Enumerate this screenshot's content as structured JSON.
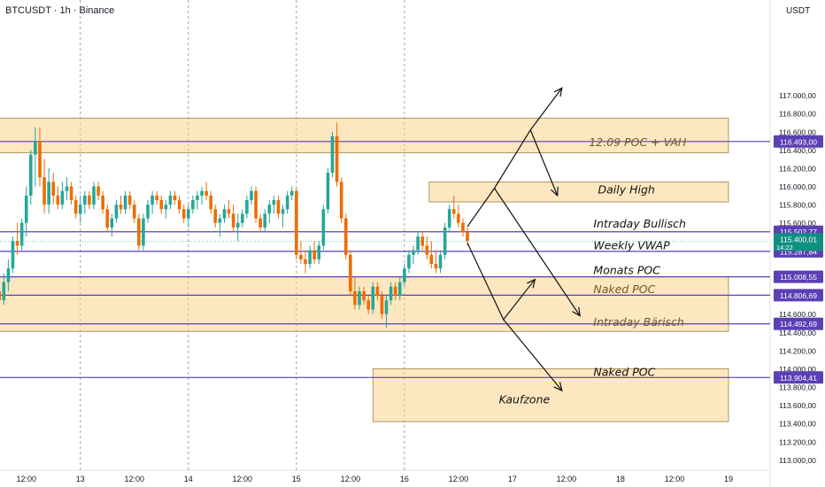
{
  "header": {
    "symbol": "BTCUSDT · 1h · Binance",
    "currency": "USDT"
  },
  "chart_data": {
    "type": "candlestick",
    "symbol": "BTCUSDT",
    "interval": "1h",
    "exchange": "Binance",
    "ylim": [
      112900,
      117300
    ],
    "y_ticks": [
      "117.000,00",
      "116.800,00",
      "116.600,00",
      "116.400,00",
      "116.200,00",
      "116.000,00",
      "115.800,00",
      "115.600,00",
      "115.400,00",
      "114.600,00",
      "114.400,00",
      "114.200,00",
      "114.000,00",
      "113.800,00",
      "113.600,00",
      "113.400,00",
      "113.200,00",
      "113.000,00"
    ],
    "x_tick_labels": [
      "12:00",
      "13",
      "12:00",
      "14",
      "12:00",
      "15",
      "12:00",
      "16",
      "12:00",
      "17",
      "12:00",
      "18",
      "12:00",
      "19"
    ],
    "x_tick_hours": [
      12,
      24,
      36,
      48,
      60,
      72,
      84,
      96,
      108,
      120,
      132,
      144,
      156,
      168
    ],
    "day_separators": [
      24,
      48,
      72,
      96
    ],
    "last_price": {
      "value": "115.400,01",
      "countdown": "14:22"
    },
    "horizontal_levels": [
      {
        "price": 116493,
        "label": "116.493,00"
      },
      {
        "price": 115502.77,
        "label": "115.502,77"
      },
      {
        "price": 115287.84,
        "label": "115.287,84"
      },
      {
        "price": 115008.55,
        "label": "115.008,55"
      },
      {
        "price": 114806.69,
        "label": "114.806,69"
      },
      {
        "price": 114492.69,
        "label": "114.492,69"
      },
      {
        "price": 113904.41,
        "label": "113.904,41"
      }
    ],
    "zones": [
      {
        "x0": 5,
        "x1": 168,
        "top": 116750,
        "bottom": 116370
      },
      {
        "x0": 101.5,
        "x1": 168,
        "top": 116050,
        "bottom": 115830
      },
      {
        "x0": 2,
        "x1": 168,
        "top": 115010,
        "bottom": 114410
      },
      {
        "x0": 89,
        "x1": 168,
        "top": 114000,
        "bottom": 113420
      }
    ],
    "annotations": [
      {
        "text": "12.09 POC + VAH",
        "x": 137,
        "y": 116480,
        "style": "dark"
      },
      {
        "text": "Daily High",
        "x": 139,
        "y": 115960,
        "style": "black"
      },
      {
        "text": "Intraday Bullisch",
        "x": 138,
        "y": 115590,
        "style": "black"
      },
      {
        "text": "Weekly VWAP",
        "x": 138,
        "y": 115350,
        "style": "black"
      },
      {
        "text": "Monats POC",
        "x": 138,
        "y": 115080,
        "style": "black"
      },
      {
        "text": "Naked POC",
        "x": 138,
        "y": 114870,
        "style": "dark"
      },
      {
        "text": "Intraday Bärisch",
        "x": 138,
        "y": 114510,
        "style": "dark"
      },
      {
        "text": "Naked POC",
        "x": 138,
        "y": 113960,
        "style": "black"
      },
      {
        "text": "Kaufzone",
        "x": 117,
        "y": 113660,
        "style": "black"
      }
    ],
    "arrows": [
      {
        "points": [
          [
            110,
            115560
          ],
          [
            116,
            115980
          ],
          [
            124,
            116620
          ],
          [
            131,
            117080
          ]
        ],
        "head": true
      },
      {
        "points": [
          [
            124,
            116620
          ],
          [
            130,
            115900
          ]
        ],
        "head": true
      },
      {
        "points": [
          [
            116,
            115980
          ],
          [
            135,
            114580
          ]
        ],
        "head": true
      },
      {
        "points": [
          [
            110,
            115380
          ],
          [
            118,
            114540
          ],
          [
            125,
            114980
          ]
        ],
        "head": true
      },
      {
        "points": [
          [
            118,
            114540
          ],
          [
            131,
            113760
          ]
        ],
        "head": true
      }
    ],
    "candles": [
      [
        115650,
        115700,
        115150,
        115300
      ],
      [
        115300,
        115550,
        115050,
        115450
      ],
      [
        115450,
        115480,
        115000,
        115100
      ],
      [
        115100,
        115150,
        114750,
        114850
      ],
      [
        114850,
        114950,
        114700,
        114750
      ],
      [
        114750,
        115050,
        114700,
        114950
      ],
      [
        114950,
        115200,
        114850,
        115100
      ],
      [
        115100,
        115450,
        115050,
        115400
      ],
      [
        115400,
        115600,
        115250,
        115350
      ],
      [
        115350,
        115650,
        115300,
        115600
      ],
      [
        115600,
        116000,
        115450,
        115900
      ],
      [
        115900,
        116400,
        115800,
        116350
      ],
      [
        116350,
        116650,
        116000,
        116500
      ],
      [
        116500,
        116650,
        116000,
        116100
      ],
      [
        116100,
        116300,
        115700,
        115800
      ],
      [
        115800,
        116200,
        115700,
        116050
      ],
      [
        116050,
        116150,
        115800,
        115900
      ],
      [
        115900,
        116000,
        115750,
        115800
      ],
      [
        115800,
        116050,
        115750,
        115950
      ],
      [
        115950,
        116100,
        115850,
        116000
      ],
      [
        116000,
        116050,
        115800,
        115850
      ],
      [
        115850,
        115900,
        115650,
        115700
      ],
      [
        115700,
        115900,
        115600,
        115800
      ],
      [
        115800,
        115950,
        115700,
        115900
      ],
      [
        115900,
        115950,
        115750,
        115800
      ],
      [
        115800,
        116050,
        115750,
        116000
      ],
      [
        116000,
        116050,
        115850,
        115900
      ],
      [
        115900,
        115950,
        115700,
        115750
      ],
      [
        115750,
        115800,
        115500,
        115550
      ],
      [
        115550,
        115700,
        115450,
        115650
      ],
      [
        115650,
        115850,
        115600,
        115800
      ],
      [
        115800,
        115900,
        115700,
        115750
      ],
      [
        115750,
        115950,
        115700,
        115900
      ],
      [
        115900,
        115950,
        115750,
        115800
      ],
      [
        115800,
        115850,
        115600,
        115650
      ],
      [
        115650,
        115700,
        115300,
        115350
      ],
      [
        115350,
        115700,
        115300,
        115650
      ],
      [
        115650,
        115850,
        115600,
        115800
      ],
      [
        115800,
        115950,
        115700,
        115900
      ],
      [
        115900,
        115950,
        115800,
        115850
      ],
      [
        115850,
        115900,
        115700,
        115750
      ],
      [
        115750,
        115850,
        115650,
        115800
      ],
      [
        115800,
        115950,
        115750,
        115900
      ],
      [
        115900,
        115950,
        115800,
        115850
      ],
      [
        115850,
        115900,
        115700,
        115750
      ],
      [
        115750,
        115800,
        115600,
        115650
      ],
      [
        115650,
        115800,
        115550,
        115750
      ],
      [
        115750,
        115900,
        115700,
        115850
      ],
      [
        115850,
        115950,
        115750,
        115900
      ],
      [
        115900,
        116000,
        115800,
        115950
      ],
      [
        115950,
        116050,
        115850,
        115900
      ],
      [
        115900,
        115950,
        115700,
        115750
      ],
      [
        115750,
        115800,
        115550,
        115600
      ],
      [
        115600,
        115700,
        115450,
        115650
      ],
      [
        115650,
        115800,
        115600,
        115750
      ],
      [
        115750,
        115850,
        115650,
        115700
      ],
      [
        115700,
        115800,
        115500,
        115550
      ],
      [
        115550,
        115700,
        115400,
        115600
      ],
      [
        115600,
        115750,
        115550,
        115700
      ],
      [
        115700,
        115900,
        115650,
        115850
      ],
      [
        115850,
        116000,
        115800,
        115950
      ],
      [
        115950,
        116000,
        115600,
        115650
      ],
      [
        115650,
        115700,
        115500,
        115550
      ],
      [
        115550,
        115750,
        115500,
        115700
      ],
      [
        115700,
        115850,
        115600,
        115800
      ],
      [
        115800,
        115900,
        115700,
        115850
      ],
      [
        115850,
        115900,
        115650,
        115700
      ],
      [
        115700,
        115800,
        115550,
        115750
      ],
      [
        115750,
        115950,
        115700,
        115900
      ],
      [
        115900,
        116000,
        115850,
        115950
      ],
      [
        115950,
        115980,
        115200,
        115250
      ],
      [
        115250,
        115400,
        115150,
        115200
      ],
      [
        115200,
        115300,
        115050,
        115150
      ],
      [
        115150,
        115350,
        115100,
        115300
      ],
      [
        115300,
        115400,
        115150,
        115200
      ],
      [
        115200,
        115400,
        115150,
        115350
      ],
      [
        115350,
        115800,
        115300,
        115750
      ],
      [
        115750,
        116200,
        115700,
        116150
      ],
      [
        116150,
        116600,
        116100,
        116550
      ],
      [
        116550,
        116700,
        116000,
        116050
      ],
      [
        116050,
        116100,
        115600,
        115650
      ],
      [
        115650,
        115700,
        115200,
        115250
      ],
      [
        115250,
        115300,
        114800,
        114850
      ],
      [
        114850,
        115000,
        114650,
        114700
      ],
      [
        114700,
        114900,
        114650,
        114850
      ],
      [
        114850,
        114900,
        114700,
        114750
      ],
      [
        114750,
        114800,
        114600,
        114650
      ],
      [
        114650,
        114950,
        114600,
        114900
      ],
      [
        114900,
        114950,
        114750,
        114800
      ],
      [
        114800,
        114850,
        114550,
        114600
      ],
      [
        114600,
        114800,
        114450,
        114750
      ],
      [
        114750,
        114950,
        114700,
        114900
      ],
      [
        114900,
        114950,
        114750,
        114800
      ],
      [
        114800,
        115000,
        114750,
        114950
      ],
      [
        114950,
        115150,
        114900,
        115100
      ],
      [
        115100,
        115300,
        115050,
        115250
      ],
      [
        115250,
        115350,
        115150,
        115300
      ],
      [
        115300,
        115500,
        115250,
        115450
      ],
      [
        115450,
        115500,
        115300,
        115350
      ],
      [
        115350,
        115450,
        115200,
        115250
      ],
      [
        115250,
        115400,
        115100,
        115150
      ],
      [
        115150,
        115300,
        115050,
        115100
      ],
      [
        115100,
        115300,
        115050,
        115250
      ],
      [
        115250,
        115600,
        115200,
        115550
      ],
      [
        115550,
        115800,
        115500,
        115750
      ],
      [
        115750,
        115900,
        115650,
        115700
      ],
      [
        115700,
        115800,
        115550,
        115600
      ],
      [
        115600,
        115650,
        115450,
        115500
      ],
      [
        115500,
        115550,
        115350,
        115400
      ]
    ]
  }
}
